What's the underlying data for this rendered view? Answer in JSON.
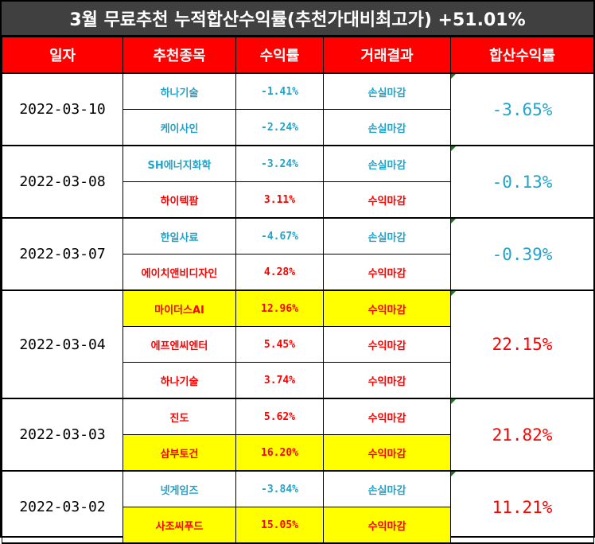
{
  "title": "3월 무료추천 누적합산수익률(추천가대비최고가) +51.01%",
  "headers": {
    "date": "일자",
    "stock": "추천종목",
    "return": "수익률",
    "result": "거래결과",
    "total": "합산수익률"
  },
  "colors": {
    "loss": "#23a3c9",
    "profit": "#ff0000",
    "highlight": "#ffff00",
    "header_bg": "#ff0000",
    "title_bg": "#404040"
  },
  "groups": [
    {
      "date": "2022-03-10",
      "total": "-3.65%",
      "total_color": "blue",
      "rows": [
        {
          "stock": "하나기술",
          "return": "-1.41%",
          "result": "손실마감",
          "color": "blue",
          "highlight": false
        },
        {
          "stock": "케이사인",
          "return": "-2.24%",
          "result": "손실마감",
          "color": "blue",
          "highlight": false
        }
      ]
    },
    {
      "date": "2022-03-08",
      "total": "-0.13%",
      "total_color": "blue",
      "rows": [
        {
          "stock": "SH에너지화학",
          "return": "-3.24%",
          "result": "손실마감",
          "color": "blue",
          "highlight": false
        },
        {
          "stock": "하이텍팜",
          "return": "3.11%",
          "result": "수익마감",
          "color": "red",
          "highlight": false
        }
      ]
    },
    {
      "date": "2022-03-07",
      "total": "-0.39%",
      "total_color": "blue",
      "rows": [
        {
          "stock": "한일사료",
          "return": "-4.67%",
          "result": "손실마감",
          "color": "blue",
          "highlight": false
        },
        {
          "stock": "에이치앤비디자인",
          "return": "4.28%",
          "result": "수익마감",
          "color": "red",
          "highlight": false
        }
      ]
    },
    {
      "date": "2022-03-04",
      "total": "22.15%",
      "total_color": "red",
      "rows": [
        {
          "stock": "마이더스AI",
          "return": "12.96%",
          "result": "수익마감",
          "color": "red",
          "highlight": true
        },
        {
          "stock": "에프엔씨엔터",
          "return": "5.45%",
          "result": "수익마감",
          "color": "red",
          "highlight": false
        },
        {
          "stock": "하나기술",
          "return": "3.74%",
          "result": "수익마감",
          "color": "red",
          "highlight": false
        }
      ]
    },
    {
      "date": "2022-03-03",
      "total": "21.82%",
      "total_color": "red",
      "rows": [
        {
          "stock": "진도",
          "return": "5.62%",
          "result": "수익마감",
          "color": "red",
          "highlight": false
        },
        {
          "stock": "삼부토건",
          "return": "16.20%",
          "result": "수익마감",
          "color": "red",
          "highlight": true
        }
      ]
    },
    {
      "date": "2022-03-02",
      "total": "11.21%",
      "total_color": "red",
      "rows": [
        {
          "stock": "넷게임즈",
          "return": "-3.84%",
          "result": "손실마감",
          "color": "blue",
          "highlight": false
        },
        {
          "stock": "사조씨푸드",
          "return": "15.05%",
          "result": "수익마감",
          "color": "red",
          "highlight": true
        }
      ]
    }
  ]
}
